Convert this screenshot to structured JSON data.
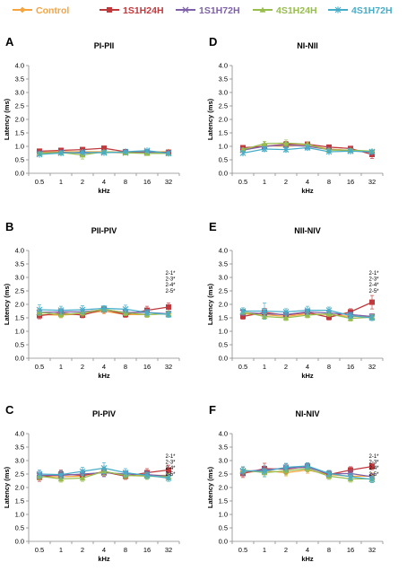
{
  "legend": [
    {
      "name": "Control",
      "color": "#F7A33E",
      "marker": "diamond"
    },
    {
      "name": "1S1H24H",
      "color": "#C0393D",
      "marker": "square"
    },
    {
      "name": "1S1H72H",
      "color": "#7E61A8",
      "marker": "x"
    },
    {
      "name": "4S1H24H",
      "color": "#97BE4D",
      "marker": "triangle"
    },
    {
      "name": "4S1H72H",
      "color": "#46ADC9",
      "marker": "star"
    }
  ],
  "chart_data": [
    {
      "id": "A",
      "title": "PI-PII",
      "type": "line",
      "categories": [
        "0.5",
        "1",
        "2",
        "4",
        "8",
        "16",
        "32"
      ],
      "xlabel": "kHz",
      "ylabel": "Latency (ms)",
      "ylim": [
        0,
        4
      ],
      "yticks": [
        "0.0",
        "0.5",
        "1.0",
        "1.5",
        "2.0",
        "2.5",
        "3.0",
        "3.5",
        "4.0"
      ],
      "grid": false,
      "annotations": [],
      "series": [
        {
          "name": "Control",
          "values": [
            0.78,
            0.8,
            0.8,
            0.8,
            0.78,
            0.8,
            0.8
          ],
          "errors": [
            0.05,
            0.05,
            0.05,
            0.05,
            0.05,
            0.05,
            0.05
          ]
        },
        {
          "name": "1S1H24H",
          "values": [
            0.82,
            0.85,
            0.88,
            0.93,
            0.8,
            0.78,
            0.78
          ],
          "errors": [
            0.06,
            0.06,
            0.06,
            0.06,
            0.05,
            0.05,
            0.05
          ]
        },
        {
          "name": "1S1H72H",
          "values": [
            0.75,
            0.78,
            0.75,
            0.78,
            0.76,
            0.78,
            0.76
          ],
          "errors": [
            0.05,
            0.05,
            0.05,
            0.05,
            0.05,
            0.05,
            0.05
          ]
        },
        {
          "name": "4S1H24H",
          "values": [
            0.74,
            0.77,
            0.68,
            0.8,
            0.76,
            0.74,
            0.74
          ],
          "errors": [
            0.05,
            0.05,
            0.15,
            0.05,
            0.05,
            0.05,
            0.05
          ]
        },
        {
          "name": "4S1H72H",
          "values": [
            0.7,
            0.75,
            0.78,
            0.76,
            0.8,
            0.84,
            0.74
          ],
          "errors": [
            0.05,
            0.05,
            0.05,
            0.05,
            0.05,
            0.05,
            0.05
          ]
        }
      ]
    },
    {
      "id": "D",
      "title": "NI-NII",
      "type": "line",
      "categories": [
        "0.5",
        "1",
        "2",
        "4",
        "8",
        "16",
        "32"
      ],
      "xlabel": "kHz",
      "ylabel": "Latency (ms)",
      "ylim": [
        0,
        4
      ],
      "yticks": [
        "0.0",
        "0.5",
        "1.0",
        "1.5",
        "2.0",
        "2.5",
        "3.0",
        "3.5",
        "4.0"
      ],
      "grid": false,
      "annotations": [],
      "series": [
        {
          "name": "Control",
          "values": [
            0.88,
            1.02,
            1.0,
            1.05,
            0.9,
            0.85,
            0.8
          ],
          "errors": [
            0.05,
            0.08,
            0.08,
            0.08,
            0.05,
            0.05,
            0.05
          ]
        },
        {
          "name": "1S1H24H",
          "values": [
            0.95,
            1.0,
            1.08,
            1.08,
            0.97,
            0.92,
            0.7
          ],
          "errors": [
            0.05,
            0.08,
            0.1,
            0.08,
            0.05,
            0.05,
            0.15
          ]
        },
        {
          "name": "1S1H72H",
          "values": [
            0.86,
            1.0,
            1.05,
            1.0,
            0.88,
            0.84,
            0.78
          ],
          "errors": [
            0.05,
            0.08,
            0.1,
            0.08,
            0.05,
            0.05,
            0.05
          ]
        },
        {
          "name": "4S1H24H",
          "values": [
            0.88,
            1.1,
            1.12,
            1.08,
            0.86,
            0.86,
            0.82
          ],
          "errors": [
            0.05,
            0.08,
            0.12,
            0.08,
            0.05,
            0.05,
            0.05
          ]
        },
        {
          "name": "4S1H72H",
          "values": [
            0.75,
            0.9,
            0.88,
            0.95,
            0.8,
            0.82,
            0.8
          ],
          "errors": [
            0.05,
            0.08,
            0.08,
            0.08,
            0.05,
            0.05,
            0.05
          ]
        }
      ]
    },
    {
      "id": "B",
      "title": "PII-PIV",
      "type": "line",
      "categories": [
        "0.5",
        "1",
        "2",
        "4",
        "8",
        "16",
        "32"
      ],
      "xlabel": "kHz",
      "ylabel": "Latency (ms)",
      "ylim": [
        0,
        4
      ],
      "yticks": [
        "0.0",
        "0.5",
        "1.0",
        "1.5",
        "2.0",
        "2.5",
        "3.0",
        "3.5",
        "4.0"
      ],
      "grid": false,
      "annotations": [
        "2-1*",
        "2-3*",
        "2-4*",
        "2-5*"
      ],
      "series": [
        {
          "name": "Control",
          "values": [
            1.62,
            1.6,
            1.65,
            1.75,
            1.62,
            1.62,
            1.65
          ],
          "errors": [
            0.1,
            0.1,
            0.1,
            0.1,
            0.1,
            0.1,
            0.1
          ]
        },
        {
          "name": "1S1H24H",
          "values": [
            1.58,
            1.68,
            1.6,
            1.82,
            1.62,
            1.78,
            1.9
          ],
          "errors": [
            0.12,
            0.12,
            0.1,
            0.1,
            0.1,
            0.15,
            0.15
          ]
        },
        {
          "name": "1S1H72H",
          "values": [
            1.7,
            1.72,
            1.72,
            1.8,
            1.7,
            1.7,
            1.65
          ],
          "errors": [
            0.12,
            0.12,
            0.12,
            0.1,
            0.1,
            0.1,
            0.1
          ]
        },
        {
          "name": "4S1H24H",
          "values": [
            1.7,
            1.62,
            1.68,
            1.82,
            1.68,
            1.62,
            1.65
          ],
          "errors": [
            0.12,
            0.1,
            0.12,
            0.1,
            0.1,
            0.1,
            0.1
          ]
        },
        {
          "name": "4S1H72H",
          "values": [
            1.8,
            1.78,
            1.8,
            1.85,
            1.82,
            1.7,
            1.62
          ],
          "errors": [
            0.18,
            0.15,
            0.15,
            0.1,
            0.15,
            0.1,
            0.1
          ]
        }
      ]
    },
    {
      "id": "E",
      "title": "NII-NIV",
      "type": "line",
      "categories": [
        "0.5",
        "1",
        "2",
        "4",
        "8",
        "16",
        "32"
      ],
      "xlabel": "kHz",
      "ylabel": "Latency (ms)",
      "ylim": [
        0,
        4
      ],
      "yticks": [
        "0.0",
        "0.5",
        "1.0",
        "1.5",
        "2.0",
        "2.5",
        "3.0",
        "3.5",
        "4.0"
      ],
      "grid": false,
      "annotations": [
        "2-1*",
        "2-3*",
        "2-4*",
        "2-5*"
      ],
      "series": [
        {
          "name": "Control",
          "values": [
            1.65,
            1.62,
            1.55,
            1.65,
            1.62,
            1.55,
            1.55
          ],
          "errors": [
            0.1,
            0.15,
            0.1,
            0.1,
            0.1,
            0.1,
            0.1
          ]
        },
        {
          "name": "1S1H24H",
          "values": [
            1.55,
            1.7,
            1.6,
            1.7,
            1.52,
            1.72,
            2.08
          ],
          "errors": [
            0.1,
            0.15,
            0.12,
            0.1,
            0.1,
            0.12,
            0.25
          ]
        },
        {
          "name": "1S1H72H",
          "values": [
            1.7,
            1.65,
            1.62,
            1.72,
            1.68,
            1.62,
            1.55
          ],
          "errors": [
            0.12,
            0.15,
            0.12,
            0.1,
            0.1,
            0.1,
            0.1
          ]
        },
        {
          "name": "4S1H24H",
          "values": [
            1.72,
            1.55,
            1.5,
            1.6,
            1.65,
            1.48,
            1.52
          ],
          "errors": [
            0.1,
            0.1,
            0.1,
            0.1,
            0.1,
            0.1,
            0.1
          ]
        },
        {
          "name": "4S1H72H",
          "values": [
            1.75,
            1.75,
            1.72,
            1.78,
            1.78,
            1.58,
            1.5
          ],
          "errors": [
            0.12,
            0.3,
            0.12,
            0.15,
            0.12,
            0.1,
            0.1
          ]
        }
      ]
    },
    {
      "id": "C",
      "title": "PI-PIV",
      "type": "line",
      "categories": [
        "0.5",
        "1",
        "2",
        "4",
        "8",
        "16",
        "32"
      ],
      "xlabel": "kHz",
      "ylabel": "Latency (ms)",
      "ylim": [
        0,
        4
      ],
      "yticks": [
        "0.0",
        "0.5",
        "1.0",
        "1.5",
        "2.0",
        "2.5",
        "3.0",
        "3.5",
        "4.0"
      ],
      "grid": false,
      "annotations": [
        "2-1*",
        "2-3*",
        "2-4*",
        "2-5*"
      ],
      "series": [
        {
          "name": "Control",
          "values": [
            2.4,
            2.4,
            2.42,
            2.6,
            2.45,
            2.45,
            2.45
          ],
          "errors": [
            0.12,
            0.12,
            0.12,
            0.12,
            0.12,
            0.12,
            0.12
          ]
        },
        {
          "name": "1S1H24H",
          "values": [
            2.38,
            2.5,
            2.45,
            2.58,
            2.42,
            2.55,
            2.65
          ],
          "errors": [
            0.15,
            0.15,
            0.15,
            0.15,
            0.12,
            0.15,
            0.18
          ]
        },
        {
          "name": "1S1H72H",
          "values": [
            2.45,
            2.45,
            2.5,
            2.55,
            2.5,
            2.48,
            2.42
          ],
          "errors": [
            0.15,
            0.15,
            0.15,
            0.15,
            0.12,
            0.12,
            0.12
          ]
        },
        {
          "name": "4S1H24H",
          "values": [
            2.42,
            2.32,
            2.35,
            2.6,
            2.45,
            2.42,
            2.4
          ],
          "errors": [
            0.12,
            0.12,
            0.12,
            0.15,
            0.12,
            0.12,
            0.12
          ]
        },
        {
          "name": "4S1H72H",
          "values": [
            2.5,
            2.48,
            2.6,
            2.72,
            2.55,
            2.45,
            2.35
          ],
          "errors": [
            0.15,
            0.15,
            0.15,
            0.2,
            0.15,
            0.12,
            0.12
          ]
        }
      ]
    },
    {
      "id": "F",
      "title": "NI-NIV",
      "type": "line",
      "categories": [
        "0.5",
        "1",
        "2",
        "4",
        "8",
        "16",
        "32"
      ],
      "xlabel": "kHz",
      "ylabel": "Latency (ms)",
      "ylim": [
        0,
        4
      ],
      "yticks": [
        "0.0",
        "0.5",
        "1.0",
        "1.5",
        "2.0",
        "2.5",
        "3.0",
        "3.5",
        "4.0"
      ],
      "grid": false,
      "annotations": [
        "2-1*",
        "2-3*",
        "2-4*",
        "2-5*"
      ],
      "series": [
        {
          "name": "Control",
          "values": [
            2.55,
            2.62,
            2.55,
            2.65,
            2.48,
            2.42,
            2.42
          ],
          "errors": [
            0.12,
            0.15,
            0.12,
            0.12,
            0.12,
            0.12,
            0.12
          ]
        },
        {
          "name": "1S1H24H",
          "values": [
            2.52,
            2.7,
            2.68,
            2.78,
            2.48,
            2.65,
            2.78
          ],
          "errors": [
            0.15,
            0.2,
            0.15,
            0.12,
            0.12,
            0.12,
            0.12
          ]
        },
        {
          "name": "1S1H72H",
          "values": [
            2.6,
            2.65,
            2.72,
            2.75,
            2.5,
            2.52,
            2.4
          ],
          "errors": [
            0.15,
            0.15,
            0.15,
            0.12,
            0.12,
            0.12,
            0.12
          ]
        },
        {
          "name": "4S1H24H",
          "values": [
            2.65,
            2.55,
            2.62,
            2.7,
            2.42,
            2.32,
            2.32
          ],
          "errors": [
            0.12,
            0.15,
            0.15,
            0.12,
            0.12,
            0.12,
            0.12
          ]
        },
        {
          "name": "4S1H72H",
          "values": [
            2.62,
            2.6,
            2.75,
            2.8,
            2.52,
            2.4,
            2.3
          ],
          "errors": [
            0.15,
            0.2,
            0.15,
            0.12,
            0.12,
            0.12,
            0.12
          ]
        }
      ]
    }
  ]
}
